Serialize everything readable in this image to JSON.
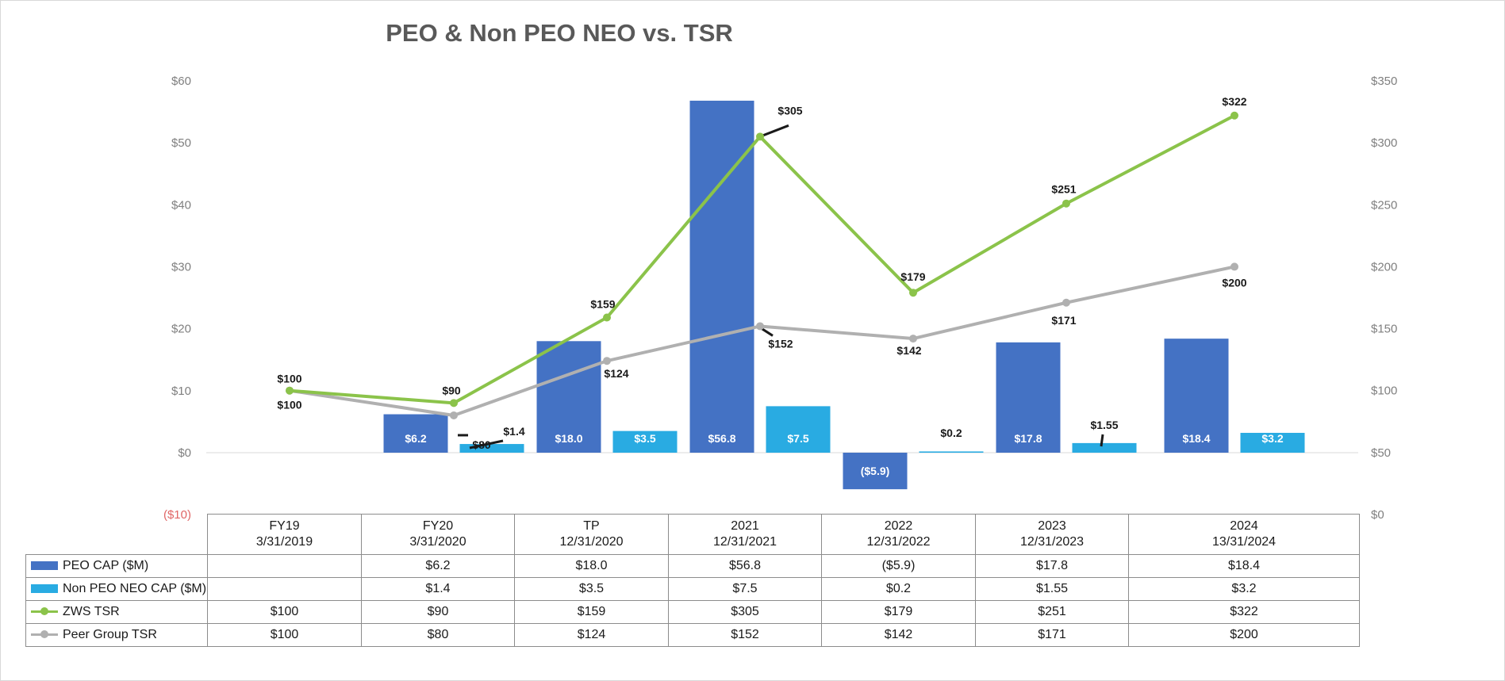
{
  "chart_data": {
    "type": "bar+line",
    "title": "PEO & Non PEO NEO vs. TSR",
    "categories": [
      {
        "label": "FY19",
        "date": "3/31/2019"
      },
      {
        "label": "FY20",
        "date": "3/31/2020"
      },
      {
        "label": "TP",
        "date": "12/31/2020"
      },
      {
        "label": "2021",
        "date": "12/31/2021"
      },
      {
        "label": "2022",
        "date": "12/31/2022"
      },
      {
        "label": "2023",
        "date": "12/31/2023"
      },
      {
        "label": "2024",
        "date": "13/31/2024"
      }
    ],
    "left_axis": {
      "min": -10,
      "max": 60,
      "step": 10,
      "ticks": [
        "($10)",
        "$0",
        "$10",
        "$20",
        "$30",
        "$40",
        "$50",
        "$60"
      ]
    },
    "right_axis": {
      "min": 0,
      "max": 350,
      "step": 50,
      "ticks": [
        "$0",
        "$50",
        "$100",
        "$150",
        "$200",
        "$250",
        "$300",
        "$350"
      ]
    },
    "series": [
      {
        "name": "PEO CAP ($M)",
        "kind": "bar",
        "axis": "left",
        "color": "#4472c4",
        "values": [
          null,
          6.2,
          18.0,
          56.8,
          -5.9,
          17.8,
          18.4
        ],
        "labels": [
          "",
          "$6.2",
          "$18.0",
          "$56.8",
          "($5.9)",
          "$17.8",
          "$18.4"
        ]
      },
      {
        "name": "Non PEO NEO CAP ($M)",
        "kind": "bar",
        "axis": "left",
        "color": "#29abe2",
        "values": [
          null,
          1.4,
          3.5,
          7.5,
          0.2,
          1.55,
          3.2
        ],
        "labels": [
          "",
          "$1.4",
          "$3.5",
          "$7.5",
          "$0.2",
          "$1.55",
          "$3.2"
        ]
      },
      {
        "name": "ZWS TSR",
        "kind": "line",
        "axis": "right",
        "color": "#8bc34a",
        "values": [
          100,
          90,
          159,
          305,
          179,
          251,
          322
        ],
        "labels": [
          "$100",
          "$90",
          "$159",
          "$305",
          "$179",
          "$251",
          "$322"
        ]
      },
      {
        "name": "Peer Group TSR",
        "kind": "line",
        "axis": "right",
        "color": "#b0b0b0",
        "values": [
          100,
          80,
          124,
          152,
          142,
          171,
          200
        ],
        "labels": [
          "$100",
          "$80",
          "$124",
          "$152",
          "$142",
          "$171",
          "$200"
        ]
      }
    ]
  }
}
